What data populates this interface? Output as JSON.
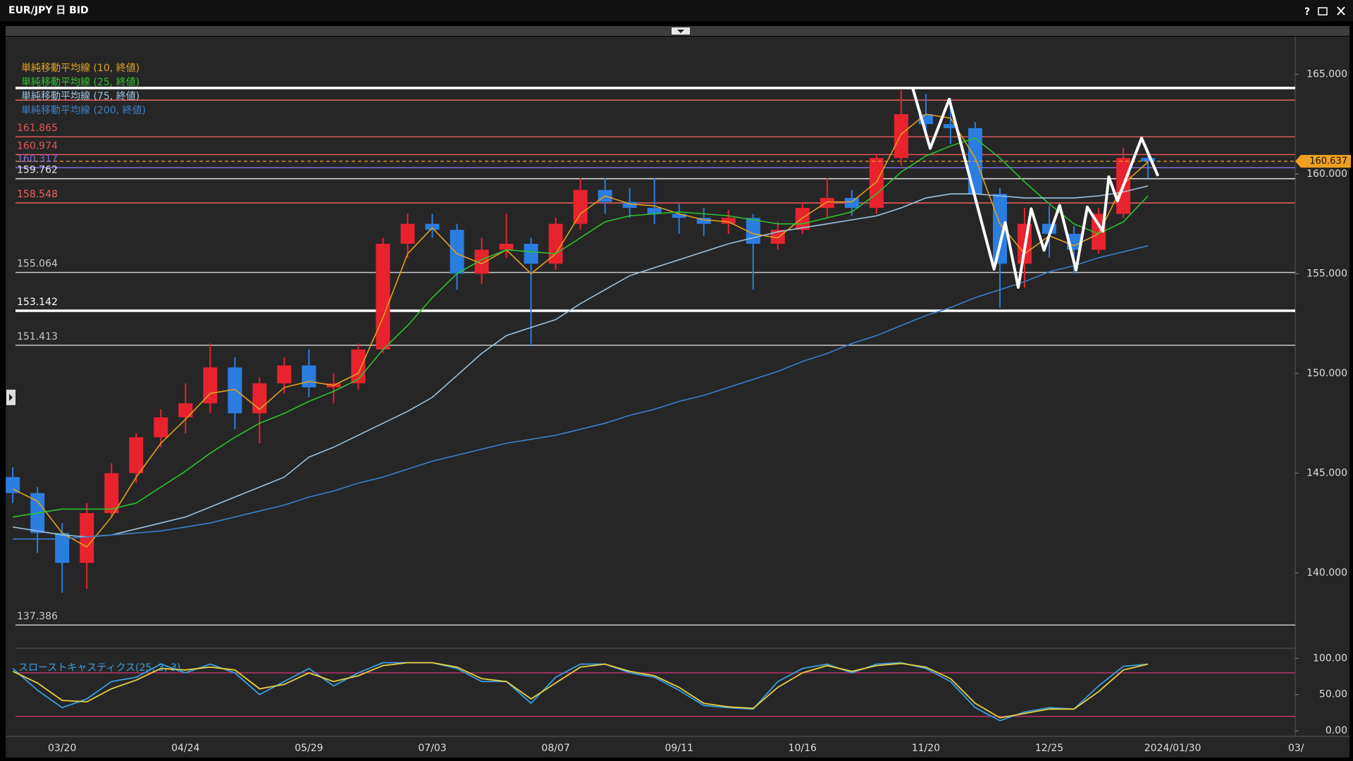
{
  "window": {
    "title": "EUR/JPY 日 BID",
    "help": "?"
  },
  "chart_data": [
    {
      "type": "candlestick",
      "categories": [
        null,
        null,
        "03/20",
        null,
        null,
        null,
        null,
        "04/24",
        null,
        null,
        null,
        null,
        "05/29",
        null,
        null,
        null,
        null,
        "07/03",
        null,
        null,
        null,
        null,
        "08/07",
        null,
        null,
        null,
        null,
        "09/11",
        null,
        null,
        null,
        null,
        "10/16",
        null,
        null,
        null,
        null,
        "11/20",
        null,
        null,
        null,
        null,
        "12/25",
        null,
        null,
        null,
        null,
        "2024/01/30",
        null,
        null,
        null,
        null,
        "03/"
      ],
      "open": [
        144.8,
        144.0,
        142.0,
        140.5,
        143.0,
        145.0,
        146.8,
        147.8,
        148.5,
        150.3,
        148.0,
        149.5,
        150.4,
        149.3,
        149.5,
        151.2,
        156.5,
        157.5,
        157.2,
        155.0,
        156.2,
        156.5,
        155.5,
        157.5,
        159.2,
        158.6,
        158.3,
        158.0,
        157.8,
        157.5,
        157.8,
        156.5,
        157.2,
        158.3,
        158.8,
        158.3,
        160.8,
        163.0,
        162.5,
        162.3,
        159.0,
        155.5,
        157.5,
        157.0,
        156.2,
        158.0,
        160.8,
        null,
        null,
        null,
        null,
        null,
        null
      ],
      "high": [
        145.3,
        144.3,
        142.5,
        143.5,
        145.5,
        147.0,
        148.2,
        149.5,
        151.5,
        150.8,
        149.8,
        150.8,
        151.2,
        150.0,
        151.5,
        156.8,
        158.0,
        158.0,
        157.5,
        156.8,
        158.0,
        156.8,
        157.8,
        159.8,
        159.8,
        159.3,
        159.8,
        158.5,
        158.3,
        158.2,
        158.0,
        157.6,
        158.6,
        159.8,
        159.2,
        161.0,
        164.2,
        164.0,
        163.8,
        162.6,
        159.3,
        158.3,
        158.4,
        157.4,
        158.3,
        161.3,
        161.2,
        null,
        null,
        null,
        null,
        null,
        null
      ],
      "low": [
        143.5,
        141.0,
        139.0,
        139.2,
        142.8,
        144.5,
        146.3,
        147.0,
        148.0,
        147.2,
        146.5,
        149.0,
        148.8,
        148.5,
        149.2,
        151.0,
        155.8,
        156.8,
        154.2,
        154.5,
        155.8,
        151.4,
        155.2,
        157.2,
        158.0,
        157.8,
        157.5,
        157.0,
        156.9,
        157.0,
        154.2,
        156.2,
        157.0,
        157.8,
        157.9,
        158.0,
        160.4,
        161.8,
        161.5,
        158.5,
        153.3,
        154.3,
        155.8,
        155.0,
        156.0,
        157.8,
        159.8,
        null,
        null,
        null,
        null,
        null,
        null
      ],
      "close": [
        144.0,
        142.0,
        140.5,
        143.0,
        145.0,
        146.8,
        147.8,
        148.5,
        150.3,
        148.0,
        149.5,
        150.4,
        149.3,
        149.5,
        151.2,
        156.5,
        157.5,
        157.2,
        155.0,
        156.2,
        156.5,
        155.5,
        157.5,
        159.2,
        158.6,
        158.3,
        158.0,
        157.8,
        157.5,
        157.8,
        156.5,
        157.2,
        158.3,
        158.8,
        158.3,
        160.8,
        163.0,
        162.5,
        162.3,
        159.0,
        155.5,
        157.5,
        157.0,
        156.2,
        158.0,
        160.8,
        160.637,
        null,
        null,
        null,
        null,
        null,
        null
      ],
      "up_color": "#e8232e",
      "down_color": "#2b7de0",
      "series": [
        {
          "name": "単純移動平均線 (10, 終値)",
          "color": "#e0a020",
          "values": [
            144.2,
            143.6,
            142.0,
            141.3,
            142.8,
            144.8,
            146.5,
            147.7,
            149.0,
            149.2,
            148.2,
            149.3,
            149.6,
            149.4,
            150.0,
            152.8,
            156.0,
            157.3,
            156.0,
            155.5,
            156.2,
            155.0,
            156.0,
            158.0,
            158.9,
            158.5,
            158.4,
            158.0,
            157.7,
            157.6,
            157.0,
            156.8,
            157.8,
            158.6,
            158.6,
            159.6,
            162.0,
            163.0,
            162.8,
            160.8,
            157.5,
            156.0,
            156.9,
            156.4,
            157.0,
            159.5,
            160.6,
            null,
            null,
            null,
            null,
            null,
            null
          ]
        },
        {
          "name": "単純移動平均線 (25, 終値)",
          "color": "#2ec02e",
          "values": [
            142.8,
            143.0,
            143.2,
            143.2,
            143.2,
            143.5,
            144.3,
            145.1,
            146.0,
            146.8,
            147.5,
            148.0,
            148.6,
            149.1,
            149.7,
            151.2,
            152.4,
            153.8,
            155.0,
            155.7,
            156.2,
            156.1,
            156.0,
            156.8,
            157.6,
            157.9,
            158.0,
            158.1,
            158.0,
            157.9,
            157.7,
            157.5,
            157.5,
            157.8,
            158.1,
            159.0,
            160.1,
            160.9,
            161.4,
            161.8,
            160.8,
            159.6,
            158.5,
            157.5,
            157.0,
            157.6,
            158.9,
            null,
            null,
            null,
            null,
            null,
            null
          ]
        },
        {
          "name": "単純移動平均線 (75, 終値)",
          "color": "#9cc3e0",
          "values": [
            142.3,
            142.1,
            141.9,
            141.8,
            141.9,
            142.2,
            142.5,
            142.8,
            143.3,
            143.8,
            144.3,
            144.8,
            145.8,
            146.3,
            146.9,
            147.5,
            148.1,
            148.8,
            149.9,
            151.0,
            151.9,
            152.3,
            152.7,
            153.5,
            154.2,
            154.9,
            155.3,
            155.7,
            156.1,
            156.5,
            156.8,
            157.1,
            157.3,
            157.5,
            157.7,
            157.9,
            158.3,
            158.8,
            159.0,
            159.0,
            158.9,
            158.8,
            158.8,
            158.8,
            158.9,
            159.1,
            159.4,
            null,
            null,
            null,
            null,
            null,
            null
          ]
        },
        {
          "name": "単純移動平均線 (200, 終値)",
          "color": "#3a7fc8",
          "values": [
            141.7,
            141.7,
            141.7,
            141.8,
            141.9,
            142.0,
            142.1,
            142.3,
            142.5,
            142.8,
            143.1,
            143.4,
            143.8,
            144.1,
            144.5,
            144.8,
            145.2,
            145.6,
            145.9,
            146.2,
            146.5,
            146.7,
            146.9,
            147.2,
            147.5,
            147.9,
            148.2,
            148.6,
            148.9,
            149.3,
            149.7,
            150.1,
            150.6,
            151.0,
            151.5,
            151.9,
            152.4,
            152.9,
            153.3,
            153.8,
            154.2,
            154.6,
            155.1,
            155.4,
            155.8,
            156.1,
            156.4,
            null,
            null,
            null,
            null,
            null,
            null
          ]
        }
      ],
      "ylim": [
        136.29,
        166.78
      ],
      "yticks": [
        {
          "value": 140,
          "label": "140.000"
        },
        {
          "value": 145,
          "label": "145.000"
        },
        {
          "value": 150,
          "label": "150.000"
        },
        {
          "value": 155,
          "label": "155.000"
        },
        {
          "value": 160,
          "label": "160.000"
        },
        {
          "value": 165,
          "label": "165.000"
        }
      ],
      "levels": [
        {
          "value": 161.865,
          "color": "#e0555a"
        },
        {
          "value": 160.974,
          "color": "#e0555a"
        },
        {
          "value": 160.317,
          "color": "#7a6ad8"
        },
        {
          "value": 159.762,
          "color": "#e6e6e6"
        },
        {
          "value": 158.548,
          "color": "#f06060"
        },
        {
          "value": 155.064,
          "color": "#c8c8c8"
        },
        {
          "value": 153.142,
          "color": "#ffffff"
        },
        {
          "value": 151.413,
          "color": "#c8c8c8"
        },
        {
          "value": 137.386,
          "color": "#c8c8c8"
        }
      ],
      "unlabeled_levels": [
        {
          "value": 164.31,
          "color": "#ffffff"
        },
        {
          "value": 163.7,
          "color": "#f06060"
        }
      ],
      "last_price": {
        "value": 160.637,
        "color": "#f0a020"
      }
    },
    {
      "type": "line",
      "title": "スローストキャスティクス(25, 3, 3)",
      "series": [
        {
          "color": "#3a9ee0",
          "values": [
            86,
            56,
            32,
            44,
            68,
            74,
            92,
            80,
            92,
            80,
            50,
            68,
            86,
            62,
            80,
            94,
            94,
            94,
            86,
            68,
            68,
            38,
            74,
            92,
            92,
            80,
            74,
            56,
            35,
            32,
            30,
            68,
            86,
            92,
            80,
            92,
            94,
            86,
            68,
            32,
            14,
            26,
            32,
            30,
            62,
            89,
            92,
            null,
            null,
            null,
            null,
            null,
            null
          ]
        },
        {
          "color": "#e8d040",
          "values": [
            82,
            66,
            42,
            40,
            58,
            70,
            86,
            84,
            88,
            84,
            58,
            64,
            80,
            68,
            76,
            90,
            94,
            94,
            88,
            72,
            68,
            44,
            66,
            88,
            92,
            82,
            76,
            60,
            38,
            33,
            31,
            60,
            80,
            90,
            82,
            90,
            93,
            88,
            72,
            38,
            18,
            24,
            30,
            30,
            54,
            84,
            92,
            null,
            null,
            null,
            null,
            null,
            null
          ]
        }
      ],
      "ylim": [
        -3.7,
        107.1
      ],
      "yticks": [
        {
          "value": 0,
          "label": "0.00"
        },
        {
          "value": 50,
          "label": "50.00"
        },
        {
          "value": 100,
          "label": "100.00"
        }
      ],
      "unlabeled_levels": [
        {
          "value": 80,
          "color": "#c0306a"
        },
        {
          "value": 20,
          "color": "#c0306a"
        }
      ]
    }
  ]
}
